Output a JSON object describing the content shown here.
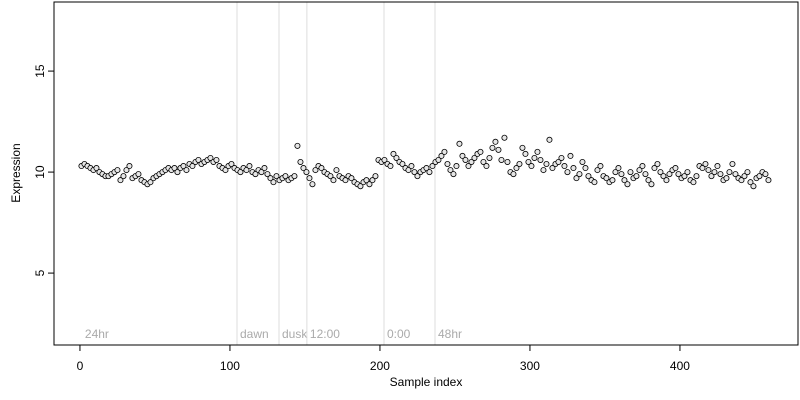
{
  "chart_data": {
    "type": "scatter",
    "x_label": "Sample index",
    "y_label": "Expression",
    "xlim": [
      -17.3,
      478.7
    ],
    "ylim": [
      1.44,
      18.42
    ],
    "xticks": [
      0,
      100,
      200,
      300,
      400
    ],
    "yticks": [
      5,
      10,
      15
    ],
    "annotations": [
      {
        "x": 1.3,
        "label": "24hr"
      },
      {
        "x": 104.7,
        "label": "dawn",
        "line": true
      },
      {
        "x": 132.7,
        "label": "dusk",
        "line": true
      },
      {
        "x": 151.3,
        "label": "12:00",
        "line": true
      },
      {
        "x": 202.7,
        "label": "0:00",
        "line": true
      },
      {
        "x": 236.7,
        "label": "48hr",
        "line": true
      }
    ],
    "series": [
      {
        "color": "#000000",
        "x": [
          1,
          3,
          5,
          7,
          9,
          11,
          13,
          15,
          17,
          19,
          21,
          23,
          25,
          27,
          29,
          31,
          33,
          35,
          37,
          39,
          41,
          43,
          45,
          47,
          49,
          51,
          53,
          55,
          57,
          59,
          61,
          63,
          65,
          67,
          69,
          71,
          73,
          75,
          77,
          79,
          81,
          83,
          85,
          87,
          89,
          91,
          93,
          95,
          97,
          99,
          101,
          103,
          105,
          107,
          109,
          111,
          113,
          115,
          117,
          119,
          121,
          123,
          125,
          127,
          129,
          131,
          133,
          135,
          137,
          139,
          141,
          143,
          145,
          147,
          149,
          151,
          153,
          155,
          157,
          159,
          161,
          163,
          165,
          167,
          169,
          171,
          173,
          175,
          177,
          179,
          181,
          183,
          185,
          187,
          189,
          191,
          193,
          195,
          197,
          199,
          201,
          203,
          205,
          207,
          209,
          211,
          213,
          215,
          217,
          219,
          221,
          223,
          225,
          227,
          229,
          231,
          233,
          235,
          237,
          239,
          241,
          243,
          245,
          247,
          249,
          251,
          253,
          255,
          257,
          259,
          261,
          263,
          265,
          267,
          269,
          271,
          273,
          275,
          277,
          279,
          281,
          283,
          285,
          287,
          289,
          291,
          293,
          295,
          297,
          299,
          301,
          303,
          305,
          307,
          309,
          311,
          313,
          315,
          317,
          319,
          321,
          323,
          325,
          327,
          329,
          331,
          333,
          335,
          337,
          339,
          341,
          343,
          345,
          347,
          349,
          351,
          353,
          355,
          357,
          359,
          361,
          363,
          365,
          367,
          369,
          371,
          373,
          375,
          377,
          379,
          381,
          383,
          385,
          387,
          389,
          391,
          393,
          395,
          397,
          399,
          401,
          403,
          405,
          407,
          409,
          411,
          413,
          415,
          417,
          419,
          421,
          423,
          425,
          427,
          429,
          431,
          433,
          435,
          437,
          439,
          441,
          443,
          445,
          447,
          449,
          451,
          453,
          455,
          457,
          459
        ],
        "values": [
          10.3,
          10.4,
          10.3,
          10.2,
          10.1,
          10.2,
          10,
          9.9,
          9.8,
          9.8,
          9.9,
          10,
          10.1,
          9.6,
          9.8,
          10.1,
          10.3,
          9.7,
          9.8,
          9.9,
          9.6,
          9.5,
          9.4,
          9.5,
          9.7,
          9.8,
          9.9,
          10,
          10.1,
          10.2,
          10.1,
          10.2,
          10,
          10.2,
          10.3,
          10.1,
          10.4,
          10.3,
          10.5,
          10.6,
          10.4,
          10.5,
          10.6,
          10.7,
          10.5,
          10.6,
          10.3,
          10.2,
          10.1,
          10.3,
          10.4,
          10.2,
          10.1,
          10,
          10.2,
          10.1,
          10.3,
          10,
          9.9,
          10.1,
          10,
          10.2,
          9.9,
          9.7,
          9.5,
          9.8,
          9.6,
          9.7,
          9.8,
          9.6,
          9.7,
          9.8,
          11.3,
          10.5,
          10.2,
          10,
          9.7,
          9.4,
          10.1,
          10.3,
          10.2,
          10,
          9.9,
          9.8,
          9.6,
          10.1,
          9.8,
          9.7,
          9.6,
          9.8,
          9.7,
          9.5,
          9.4,
          9.3,
          9.5,
          9.6,
          9.4,
          9.6,
          9.8,
          10.6,
          10.5,
          10.6,
          10.4,
          10.3,
          10.9,
          10.7,
          10.5,
          10.4,
          10.2,
          10.1,
          10.3,
          10,
          9.8,
          10,
          10.1,
          10.2,
          10,
          10.3,
          10.5,
          10.6,
          10.8,
          11,
          10.4,
          10.1,
          9.9,
          10.3,
          11.4,
          10.8,
          10.6,
          10.3,
          10.5,
          10.7,
          10.9,
          11,
          10.5,
          10.3,
          10.7,
          11.2,
          11.5,
          11.1,
          10.6,
          11.7,
          10.5,
          10,
          9.9,
          10.2,
          10.4,
          11.2,
          10.9,
          10.5,
          10.3,
          10.7,
          11,
          10.6,
          10.1,
          10.4,
          11.6,
          10.2,
          10.4,
          10.5,
          10.7,
          10.3,
          10,
          10.8,
          10.2,
          9.7,
          9.9,
          10.5,
          10.2,
          9.8,
          9.6,
          9.5,
          10.1,
          10.3,
          9.8,
          9.7,
          9.5,
          9.6,
          10,
          10.2,
          9.9,
          9.6,
          9.4,
          10,
          9.7,
          9.8,
          10.1,
          10.3,
          9.9,
          9.6,
          9.4,
          10.2,
          10.4,
          10,
          9.8,
          9.6,
          9.9,
          10.1,
          10.2,
          9.9,
          9.7,
          9.8,
          10,
          9.6,
          9.5,
          9.8,
          10.3,
          10.2,
          10.4,
          10.1,
          9.8,
          10,
          10.3,
          9.9,
          9.6,
          9.7,
          10,
          10.4,
          9.9,
          9.7,
          9.6,
          9.8,
          10,
          9.5,
          9.3,
          9.7,
          9.8,
          10,
          9.9,
          9.6
        ]
      }
    ]
  }
}
